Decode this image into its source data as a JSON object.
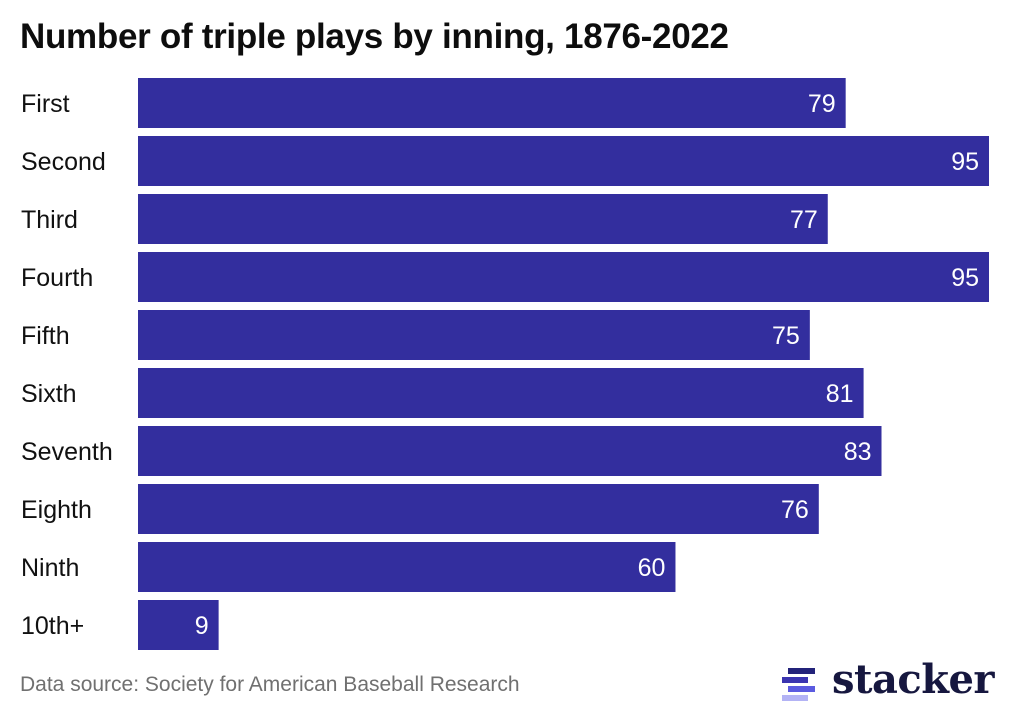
{
  "chart_data": {
    "type": "bar",
    "orientation": "horizontal",
    "title": "Number of triple plays by inning, 1876-2022",
    "categories": [
      "First",
      "Second",
      "Third",
      "Fourth",
      "Fifth",
      "Sixth",
      "Seventh",
      "Eighth",
      "Ninth",
      "10th+"
    ],
    "values": [
      79,
      95,
      77,
      95,
      75,
      81,
      83,
      76,
      60,
      9
    ],
    "xlabel": "",
    "ylabel": "",
    "xlim": [
      0,
      95
    ],
    "grid": false,
    "data_labels": true,
    "bar_color": "#332e9e"
  },
  "footer": {
    "source": "Data source: Society for American Baseball Research",
    "logo_text": "stacker",
    "logo_colors": [
      "#23237a",
      "#3a34b0",
      "#5b5be0",
      "#b3b3f5"
    ]
  }
}
